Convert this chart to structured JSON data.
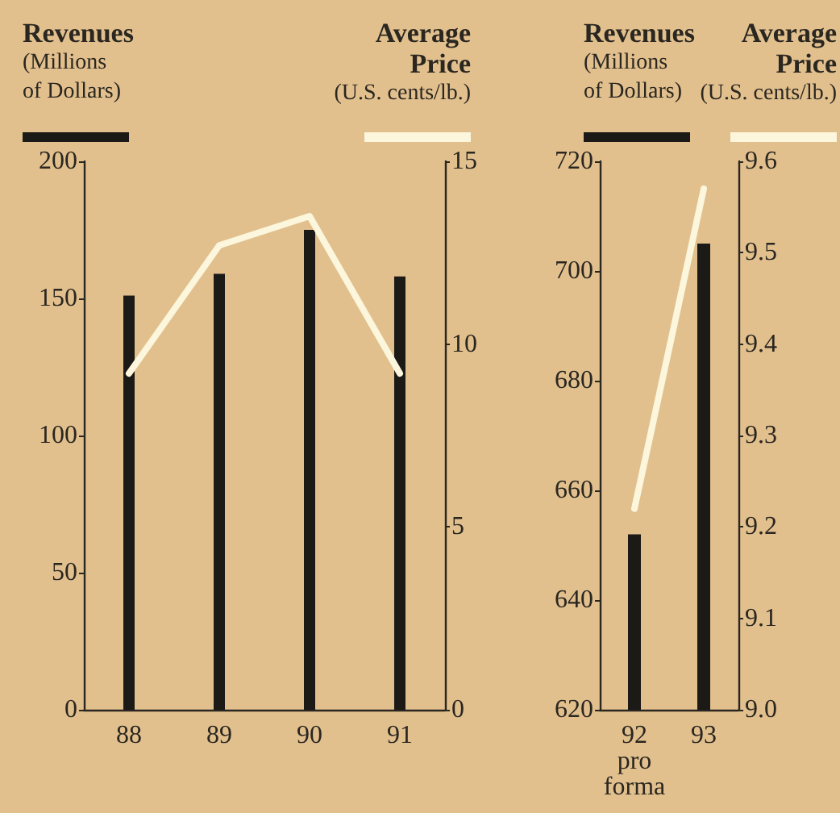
{
  "chart_data": [
    {
      "type": "bar",
      "ylabel": "Revenues\n(Millions\nof Dollars)",
      "y2label": "Average\nPrice\n(U.S. cents/lb.)",
      "categories": [
        "88",
        "89",
        "90",
        "91"
      ],
      "series": [
        {
          "color": "#1c1a16",
          "values": [
            151,
            159,
            175,
            158
          ]
        },
        {
          "type": "line",
          "axis": "y2",
          "color": "#fbf6dc",
          "values": [
            9.2,
            12.7,
            13.5,
            9.2
          ]
        }
      ],
      "ylim": [
        0,
        200
      ],
      "yticks": [
        0,
        50,
        100,
        150,
        200
      ],
      "y2lim": [
        0,
        15
      ],
      "y2ticks": [
        0,
        5,
        10,
        15
      ],
      "grid": false,
      "marker": "none"
    },
    {
      "type": "bar",
      "ylabel": "Revenues\n(Millions\nof Dollars)",
      "y2label": "Average\nPrice\n(U.S. cents/lb.)",
      "categories": [
        "92\npro\nforma",
        "93"
      ],
      "series": [
        {
          "color": "#1c1a16",
          "values": [
            652,
            705
          ]
        },
        {
          "type": "line",
          "axis": "y2",
          "color": "#fbf6dc",
          "values": [
            9.22,
            9.57
          ]
        }
      ],
      "ylim": [
        620,
        720
      ],
      "yticks": [
        620,
        640,
        660,
        680,
        700,
        720
      ],
      "y2lim": [
        9.0,
        9.6
      ],
      "y2ticks": [
        {
          "value": 9.0,
          "label": "9.0"
        },
        9.1,
        9.2,
        9.3,
        9.4,
        9.5,
        9.6
      ],
      "grid": false,
      "marker": "none"
    }
  ]
}
